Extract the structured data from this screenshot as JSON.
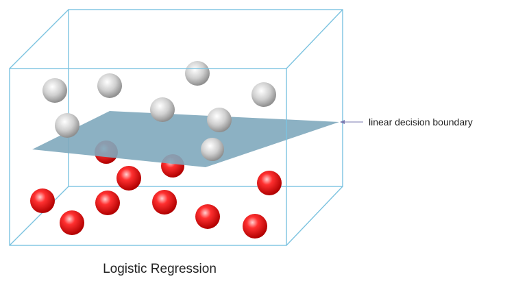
{
  "annotation": "linear decision boundary",
  "caption": "Logistic Regression"
}
